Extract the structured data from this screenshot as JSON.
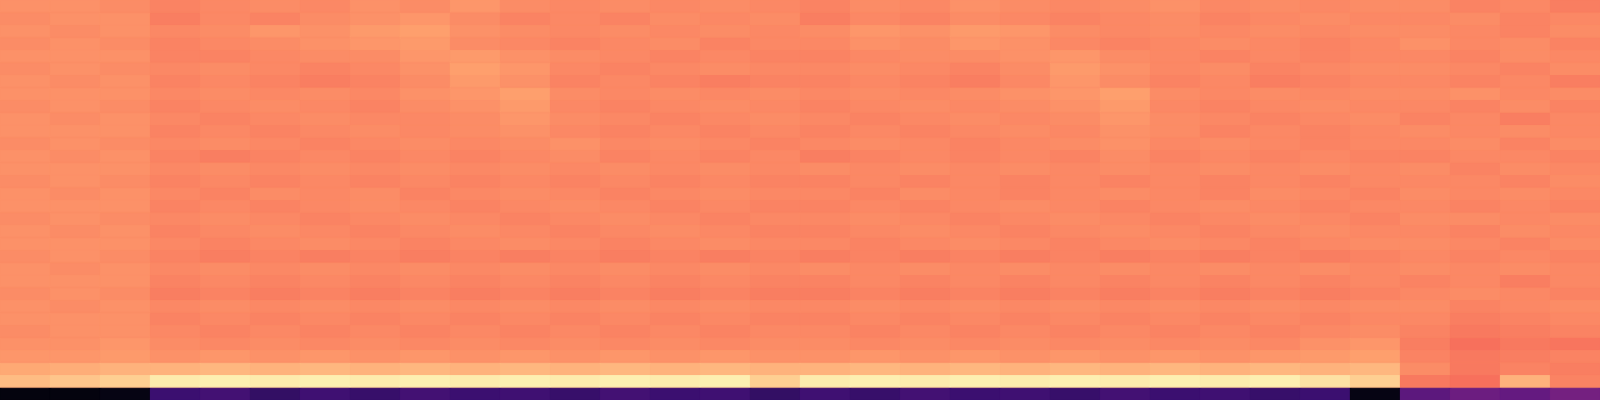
{
  "chart_data": {
    "type": "heatmap",
    "color_range": [
      0,
      1
    ],
    "tick_labels": false,
    "cells": [
      [
        0.77,
        0.77,
        0.76,
        0.74,
        0.75,
        0.76,
        0.75,
        0.77,
        0.76,
        0.78,
        0.76,
        0.75,
        0.76,
        0.75,
        0.76,
        0.75,
        0.74,
        0.76,
        0.75,
        0.77,
        0.76,
        0.75,
        0.76,
        0.77,
        0.75,
        0.76,
        0.75,
        0.76,
        0.76,
        0.74,
        0.75,
        0.73
      ],
      [
        0.76,
        0.77,
        0.77,
        0.73,
        0.75,
        0.74,
        0.76,
        0.77,
        0.78,
        0.76,
        0.74,
        0.75,
        0.74,
        0.76,
        0.75,
        0.76,
        0.73,
        0.75,
        0.74,
        0.76,
        0.75,
        0.74,
        0.75,
        0.76,
        0.74,
        0.75,
        0.76,
        0.75,
        0.75,
        0.76,
        0.74,
        0.75
      ],
      [
        0.77,
        0.76,
        0.77,
        0.75,
        0.76,
        0.78,
        0.77,
        0.79,
        0.8,
        0.77,
        0.76,
        0.75,
        0.76,
        0.75,
        0.76,
        0.75,
        0.76,
        0.78,
        0.77,
        0.79,
        0.78,
        0.76,
        0.75,
        0.76,
        0.75,
        0.76,
        0.75,
        0.76,
        0.76,
        0.75,
        0.74,
        0.76
      ],
      [
        0.76,
        0.77,
        0.76,
        0.74,
        0.75,
        0.76,
        0.77,
        0.78,
        0.79,
        0.76,
        0.75,
        0.74,
        0.75,
        0.76,
        0.74,
        0.75,
        0.75,
        0.77,
        0.76,
        0.78,
        0.77,
        0.75,
        0.74,
        0.75,
        0.76,
        0.75,
        0.74,
        0.75,
        0.77,
        0.75,
        0.76,
        0.74
      ],
      [
        0.77,
        0.77,
        0.77,
        0.74,
        0.74,
        0.75,
        0.76,
        0.76,
        0.78,
        0.79,
        0.77,
        0.76,
        0.75,
        0.74,
        0.75,
        0.74,
        0.74,
        0.75,
        0.76,
        0.76,
        0.77,
        0.78,
        0.76,
        0.75,
        0.74,
        0.75,
        0.74,
        0.75,
        0.75,
        0.74,
        0.76,
        0.75
      ],
      [
        0.76,
        0.77,
        0.76,
        0.75,
        0.76,
        0.75,
        0.74,
        0.75,
        0.77,
        0.8,
        0.78,
        0.75,
        0.74,
        0.75,
        0.76,
        0.75,
        0.75,
        0.76,
        0.75,
        0.74,
        0.76,
        0.79,
        0.77,
        0.75,
        0.76,
        0.74,
        0.75,
        0.76,
        0.76,
        0.75,
        0.74,
        0.76
      ],
      [
        0.77,
        0.76,
        0.77,
        0.74,
        0.75,
        0.74,
        0.73,
        0.74,
        0.76,
        0.79,
        0.77,
        0.74,
        0.75,
        0.74,
        0.73,
        0.74,
        0.74,
        0.75,
        0.74,
        0.73,
        0.75,
        0.78,
        0.76,
        0.74,
        0.75,
        0.73,
        0.74,
        0.75,
        0.75,
        0.74,
        0.75,
        0.73
      ],
      [
        0.77,
        0.77,
        0.77,
        0.75,
        0.76,
        0.75,
        0.76,
        0.75,
        0.77,
        0.78,
        0.8,
        0.76,
        0.75,
        0.76,
        0.75,
        0.76,
        0.75,
        0.76,
        0.75,
        0.76,
        0.77,
        0.78,
        0.8,
        0.76,
        0.75,
        0.76,
        0.75,
        0.76,
        0.76,
        0.77,
        0.75,
        0.76
      ],
      [
        0.76,
        0.77,
        0.76,
        0.74,
        0.75,
        0.76,
        0.75,
        0.74,
        0.76,
        0.77,
        0.79,
        0.75,
        0.74,
        0.75,
        0.76,
        0.75,
        0.74,
        0.75,
        0.76,
        0.75,
        0.76,
        0.77,
        0.79,
        0.75,
        0.74,
        0.75,
        0.76,
        0.75,
        0.75,
        0.74,
        0.76,
        0.74
      ],
      [
        0.77,
        0.76,
        0.77,
        0.75,
        0.74,
        0.75,
        0.76,
        0.75,
        0.75,
        0.76,
        0.78,
        0.76,
        0.75,
        0.74,
        0.75,
        0.76,
        0.75,
        0.74,
        0.75,
        0.76,
        0.75,
        0.76,
        0.78,
        0.76,
        0.75,
        0.74,
        0.75,
        0.76,
        0.74,
        0.75,
        0.73,
        0.75
      ],
      [
        0.77,
        0.77,
        0.77,
        0.74,
        0.75,
        0.74,
        0.75,
        0.76,
        0.75,
        0.76,
        0.77,
        0.75,
        0.74,
        0.75,
        0.74,
        0.75,
        0.74,
        0.75,
        0.74,
        0.75,
        0.76,
        0.75,
        0.77,
        0.76,
        0.74,
        0.75,
        0.74,
        0.75,
        0.76,
        0.75,
        0.76,
        0.75
      ],
      [
        0.76,
        0.77,
        0.76,
        0.75,
        0.76,
        0.75,
        0.74,
        0.75,
        0.76,
        0.75,
        0.76,
        0.77,
        0.75,
        0.76,
        0.75,
        0.74,
        0.75,
        0.76,
        0.75,
        0.74,
        0.75,
        0.76,
        0.77,
        0.75,
        0.76,
        0.75,
        0.74,
        0.75,
        0.75,
        0.76,
        0.74,
        0.76
      ],
      [
        0.77,
        0.76,
        0.77,
        0.74,
        0.73,
        0.74,
        0.75,
        0.74,
        0.75,
        0.74,
        0.75,
        0.76,
        0.74,
        0.75,
        0.74,
        0.75,
        0.73,
        0.74,
        0.75,
        0.74,
        0.75,
        0.74,
        0.76,
        0.74,
        0.75,
        0.74,
        0.75,
        0.74,
        0.74,
        0.75,
        0.75,
        0.74
      ],
      [
        0.77,
        0.77,
        0.77,
        0.75,
        0.76,
        0.75,
        0.76,
        0.75,
        0.76,
        0.75,
        0.76,
        0.75,
        0.76,
        0.75,
        0.76,
        0.75,
        0.76,
        0.75,
        0.76,
        0.75,
        0.76,
        0.75,
        0.76,
        0.75,
        0.76,
        0.75,
        0.76,
        0.75,
        0.76,
        0.74,
        0.76,
        0.75
      ],
      [
        0.76,
        0.77,
        0.76,
        0.74,
        0.75,
        0.74,
        0.75,
        0.74,
        0.75,
        0.74,
        0.75,
        0.74,
        0.75,
        0.74,
        0.75,
        0.74,
        0.74,
        0.75,
        0.74,
        0.75,
        0.74,
        0.75,
        0.74,
        0.75,
        0.74,
        0.75,
        0.74,
        0.75,
        0.75,
        0.75,
        0.74,
        0.76
      ],
      [
        0.77,
        0.76,
        0.77,
        0.75,
        0.74,
        0.76,
        0.75,
        0.76,
        0.74,
        0.75,
        0.76,
        0.75,
        0.74,
        0.75,
        0.76,
        0.75,
        0.75,
        0.74,
        0.76,
        0.75,
        0.74,
        0.75,
        0.76,
        0.75,
        0.74,
        0.76,
        0.75,
        0.74,
        0.76,
        0.75,
        0.76,
        0.75
      ],
      [
        0.77,
        0.77,
        0.77,
        0.74,
        0.75,
        0.74,
        0.75,
        0.76,
        0.75,
        0.74,
        0.75,
        0.76,
        0.75,
        0.74,
        0.75,
        0.74,
        0.74,
        0.75,
        0.74,
        0.75,
        0.76,
        0.75,
        0.74,
        0.75,
        0.76,
        0.75,
        0.74,
        0.75,
        0.75,
        0.74,
        0.75,
        0.74
      ],
      [
        0.76,
        0.77,
        0.76,
        0.75,
        0.76,
        0.75,
        0.74,
        0.75,
        0.76,
        0.75,
        0.74,
        0.75,
        0.76,
        0.75,
        0.74,
        0.75,
        0.75,
        0.76,
        0.75,
        0.74,
        0.75,
        0.76,
        0.75,
        0.74,
        0.75,
        0.76,
        0.75,
        0.74,
        0.76,
        0.76,
        0.75,
        0.76
      ],
      [
        0.77,
        0.76,
        0.77,
        0.74,
        0.75,
        0.76,
        0.75,
        0.74,
        0.75,
        0.76,
        0.75,
        0.74,
        0.75,
        0.76,
        0.75,
        0.74,
        0.74,
        0.75,
        0.76,
        0.75,
        0.74,
        0.75,
        0.76,
        0.75,
        0.74,
        0.75,
        0.76,
        0.75,
        0.75,
        0.74,
        0.76,
        0.75
      ],
      [
        0.77,
        0.77,
        0.77,
        0.75,
        0.74,
        0.75,
        0.76,
        0.75,
        0.74,
        0.75,
        0.76,
        0.75,
        0.74,
        0.75,
        0.76,
        0.75,
        0.75,
        0.74,
        0.75,
        0.76,
        0.75,
        0.74,
        0.75,
        0.76,
        0.75,
        0.74,
        0.75,
        0.76,
        0.76,
        0.75,
        0.74,
        0.76
      ],
      [
        0.76,
        0.77,
        0.76,
        0.74,
        0.73,
        0.74,
        0.73,
        0.74,
        0.73,
        0.74,
        0.73,
        0.74,
        0.73,
        0.74,
        0.73,
        0.74,
        0.73,
        0.74,
        0.73,
        0.74,
        0.73,
        0.74,
        0.73,
        0.74,
        0.73,
        0.74,
        0.73,
        0.74,
        0.75,
        0.74,
        0.75,
        0.74
      ],
      [
        0.77,
        0.76,
        0.77,
        0.75,
        0.76,
        0.75,
        0.76,
        0.75,
        0.76,
        0.75,
        0.76,
        0.75,
        0.76,
        0.75,
        0.76,
        0.75,
        0.76,
        0.75,
        0.76,
        0.75,
        0.76,
        0.75,
        0.76,
        0.75,
        0.76,
        0.75,
        0.76,
        0.75,
        0.76,
        0.75,
        0.76,
        0.75
      ],
      [
        0.77,
        0.77,
        0.77,
        0.74,
        0.75,
        0.74,
        0.75,
        0.74,
        0.75,
        0.74,
        0.75,
        0.74,
        0.75,
        0.74,
        0.75,
        0.74,
        0.74,
        0.75,
        0.74,
        0.75,
        0.74,
        0.75,
        0.74,
        0.75,
        0.74,
        0.75,
        0.74,
        0.75,
        0.74,
        0.75,
        0.73,
        0.75
      ],
      [
        0.76,
        0.77,
        0.76,
        0.73,
        0.74,
        0.73,
        0.74,
        0.73,
        0.74,
        0.73,
        0.74,
        0.73,
        0.74,
        0.73,
        0.74,
        0.73,
        0.73,
        0.74,
        0.73,
        0.74,
        0.73,
        0.74,
        0.73,
        0.74,
        0.73,
        0.74,
        0.73,
        0.74,
        0.75,
        0.76,
        0.75,
        0.74
      ],
      [
        0.77,
        0.76,
        0.77,
        0.75,
        0.76,
        0.75,
        0.76,
        0.75,
        0.76,
        0.75,
        0.76,
        0.75,
        0.76,
        0.75,
        0.76,
        0.75,
        0.75,
        0.76,
        0.75,
        0.76,
        0.75,
        0.76,
        0.75,
        0.76,
        0.75,
        0.76,
        0.75,
        0.76,
        0.76,
        0.74,
        0.75,
        0.76
      ],
      [
        0.77,
        0.77,
        0.77,
        0.74,
        0.75,
        0.74,
        0.75,
        0.74,
        0.75,
        0.74,
        0.75,
        0.74,
        0.75,
        0.74,
        0.75,
        0.74,
        0.74,
        0.75,
        0.74,
        0.75,
        0.74,
        0.75,
        0.74,
        0.75,
        0.74,
        0.75,
        0.74,
        0.75,
        0.75,
        0.73,
        0.74,
        0.75
      ],
      [
        0.76,
        0.77,
        0.77,
        0.75,
        0.74,
        0.75,
        0.74,
        0.75,
        0.74,
        0.75,
        0.74,
        0.75,
        0.74,
        0.75,
        0.74,
        0.75,
        0.75,
        0.74,
        0.75,
        0.74,
        0.75,
        0.74,
        0.75,
        0.74,
        0.75,
        0.74,
        0.75,
        0.76,
        0.74,
        0.72,
        0.73,
        0.74
      ],
      [
        0.77,
        0.77,
        0.78,
        0.76,
        0.75,
        0.76,
        0.75,
        0.76,
        0.75,
        0.76,
        0.75,
        0.76,
        0.75,
        0.76,
        0.75,
        0.76,
        0.76,
        0.75,
        0.76,
        0.75,
        0.76,
        0.75,
        0.76,
        0.75,
        0.76,
        0.75,
        0.77,
        0.78,
        0.73,
        0.7,
        0.72,
        0.71
      ],
      [
        0.78,
        0.78,
        0.79,
        0.77,
        0.78,
        0.77,
        0.78,
        0.77,
        0.78,
        0.77,
        0.78,
        0.77,
        0.78,
        0.77,
        0.78,
        0.77,
        0.77,
        0.78,
        0.77,
        0.78,
        0.77,
        0.78,
        0.77,
        0.78,
        0.77,
        0.78,
        0.79,
        0.8,
        0.74,
        0.72,
        0.73,
        0.74
      ],
      [
        0.82,
        0.83,
        0.84,
        0.84,
        0.85,
        0.84,
        0.85,
        0.84,
        0.85,
        0.84,
        0.85,
        0.84,
        0.85,
        0.84,
        0.85,
        0.84,
        0.84,
        0.85,
        0.84,
        0.85,
        0.84,
        0.85,
        0.84,
        0.85,
        0.84,
        0.85,
        0.84,
        0.85,
        0.76,
        0.72,
        0.74,
        0.73
      ],
      [
        0.86,
        0.88,
        0.9,
        0.96,
        0.97,
        0.96,
        0.97,
        0.96,
        0.97,
        0.96,
        0.97,
        0.96,
        0.97,
        0.96,
        0.97,
        0.9,
        0.96,
        0.97,
        0.96,
        0.97,
        0.96,
        0.97,
        0.96,
        0.97,
        0.96,
        0.97,
        0.94,
        0.9,
        0.72,
        0.7,
        0.84,
        0.74
      ],
      [
        0.02,
        0.02,
        0.03,
        0.2,
        0.22,
        0.18,
        0.21,
        0.19,
        0.22,
        0.2,
        0.21,
        0.19,
        0.22,
        0.2,
        0.21,
        0.18,
        0.21,
        0.19,
        0.22,
        0.2,
        0.21,
        0.19,
        0.22,
        0.2,
        0.21,
        0.19,
        0.2,
        0.03,
        0.28,
        0.32,
        0.3,
        0.34
      ]
    ]
  }
}
